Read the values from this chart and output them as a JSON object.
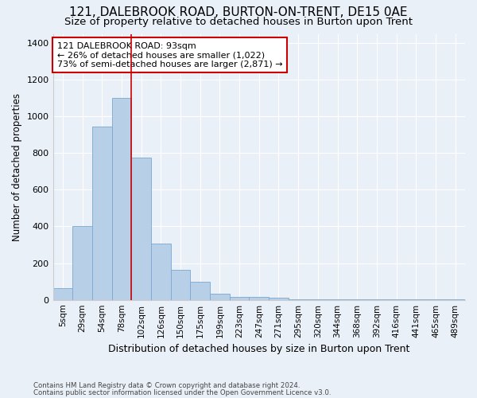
{
  "title": "121, DALEBROOK ROAD, BURTON-ON-TRENT, DE15 0AE",
  "subtitle": "Size of property relative to detached houses in Burton upon Trent",
  "xlabel": "Distribution of detached houses by size in Burton upon Trent",
  "ylabel": "Number of detached properties",
  "footnote1": "Contains HM Land Registry data © Crown copyright and database right 2024.",
  "footnote2": "Contains public sector information licensed under the Open Government Licence v3.0.",
  "bar_labels": [
    "5sqm",
    "29sqm",
    "54sqm",
    "78sqm",
    "102sqm",
    "126sqm",
    "150sqm",
    "175sqm",
    "199sqm",
    "223sqm",
    "247sqm",
    "271sqm",
    "295sqm",
    "320sqm",
    "344sqm",
    "368sqm",
    "392sqm",
    "416sqm",
    "441sqm",
    "465sqm",
    "489sqm"
  ],
  "bar_values": [
    65,
    400,
    945,
    1100,
    775,
    305,
    165,
    100,
    35,
    15,
    15,
    10,
    5,
    2,
    2,
    2,
    2,
    1,
    1,
    1,
    1
  ],
  "bar_color": "#b8cfe8",
  "bar_edge_color": "#7aa8d0",
  "ylim": [
    0,
    1450
  ],
  "yticks": [
    0,
    200,
    400,
    600,
    800,
    1000,
    1200,
    1400
  ],
  "vline_x": 3.5,
  "annotation_text": "121 DALEBROOK ROAD: 93sqm\n← 26% of detached houses are smaller (1,022)\n73% of semi-detached houses are larger (2,871) →",
  "annotation_box_color": "#ffffff",
  "annotation_box_edge": "#cc0000",
  "vline_color": "#cc0000",
  "background_color": "#eaf0f8",
  "grid_color": "#ffffff",
  "title_fontsize": 11,
  "subtitle_fontsize": 9.5,
  "annot_fontsize": 8,
  "xlabel_fontsize": 9,
  "ylabel_fontsize": 8.5,
  "tick_fontsize": 7.5,
  "ytick_fontsize": 8
}
